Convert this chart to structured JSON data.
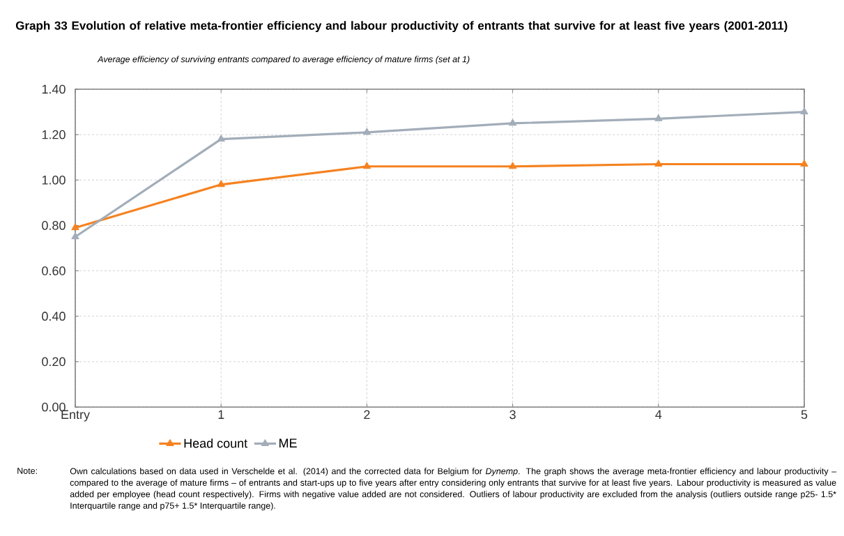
{
  "chart_data": {
    "type": "line",
    "title": "Graph 33   Evolution of relative meta-frontier efficiency and labour productivity of entrants that survive for at least five years (2001-2011)",
    "subtitle": "Average efficiency of surviving entrants compared to average efficiency of mature firms (set at 1)",
    "categories": [
      "Entry",
      "1",
      "2",
      "3",
      "4",
      "5"
    ],
    "series": [
      {
        "name": "Head count",
        "color": "#f58220",
        "values": [
          0.79,
          0.98,
          1.06,
          1.06,
          1.07,
          1.07
        ]
      },
      {
        "name": "ME",
        "color": "#a2adb9",
        "values": [
          0.75,
          1.18,
          1.21,
          1.25,
          1.27,
          1.3
        ]
      }
    ],
    "ylim": [
      0,
      1.4
    ],
    "yticks": [
      {
        "value": 0,
        "label": "0.00"
      },
      {
        "value": 0.2,
        "label": "0.20"
      },
      {
        "value": 0.4,
        "label": "0.40"
      },
      {
        "value": 0.6,
        "label": "0.60"
      },
      {
        "value": 0.8,
        "label": "0.80"
      },
      {
        "value": 1.0,
        "label": "1.00"
      },
      {
        "value": 1.2,
        "label": "1.20"
      },
      {
        "value": 1.4,
        "label": "1.40"
      }
    ],
    "grid": true,
    "legend": "bottom",
    "marker": "triangle",
    "line_style": "solid",
    "annotations": [
      "Note:",
      "Own calculations based on data used in Verschelde et al. (2014) and the corrected data for Belgium for *Dynemp*. The graph shows the average meta-frontier efficiency and labour productivity – compared to the average of mature firms – of entrants and start-ups up to five years after entry considering only entrants that survive for at least five years. Labour productivity is measured as value added per employee (head count respectively). Firms with negative value added are not considered. Outliers of labour productivity are excluded from the analysis (outliers outside range p25- 1.5* Interquartile range and p75+ 1.5* Interquartile range)."
    ]
  }
}
